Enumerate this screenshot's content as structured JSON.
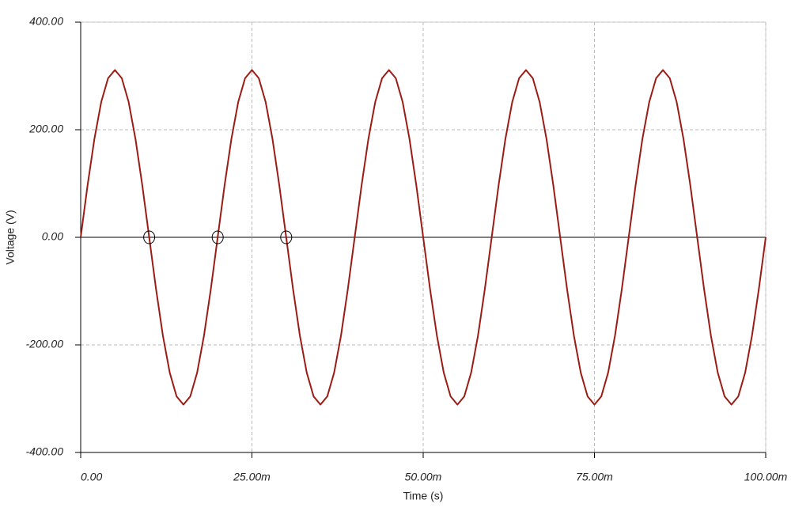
{
  "chart_data": {
    "type": "line",
    "x_label": "Time (s)",
    "y_label": "Voltage (V)",
    "x": [
      0,
      0.001,
      0.002,
      0.003,
      0.004,
      0.005,
      0.006,
      0.007,
      0.008,
      0.009,
      0.01,
      0.011,
      0.012,
      0.013,
      0.014,
      0.015,
      0.016,
      0.017,
      0.018,
      0.019,
      0.02,
      0.021,
      0.022,
      0.023,
      0.024,
      0.025,
      0.026,
      0.027,
      0.028,
      0.029,
      0.03,
      0.031,
      0.032,
      0.033,
      0.034,
      0.035,
      0.036,
      0.037,
      0.038,
      0.039,
      0.04,
      0.041,
      0.042,
      0.043,
      0.044,
      0.045,
      0.046,
      0.047,
      0.048,
      0.049,
      0.05,
      0.051,
      0.052,
      0.053,
      0.054,
      0.055,
      0.056,
      0.057,
      0.058,
      0.059,
      0.06,
      0.061,
      0.062,
      0.063,
      0.064,
      0.065,
      0.066,
      0.067,
      0.068,
      0.069,
      0.07,
      0.071,
      0.072,
      0.073,
      0.074,
      0.075,
      0.076,
      0.077,
      0.078,
      0.079,
      0.08,
      0.081,
      0.082,
      0.083,
      0.084,
      0.085,
      0.086,
      0.087,
      0.088,
      0.089,
      0.09,
      0.091,
      0.092,
      0.093,
      0.094,
      0.095,
      0.096,
      0.097,
      0.098,
      0.099,
      0.1
    ],
    "series": [
      {
        "color": "#9b1c14",
        "values": [
          0,
          96.1,
          182.8,
          251.6,
          295.8,
          311,
          295.8,
          251.6,
          182.8,
          96.1,
          0,
          -96.1,
          -182.8,
          -251.6,
          -295.8,
          -311,
          -295.8,
          -251.6,
          -182.8,
          -96.1,
          0,
          96.1,
          182.8,
          251.6,
          295.8,
          311,
          295.8,
          251.6,
          182.8,
          96.1,
          0,
          -96.1,
          -182.8,
          -251.6,
          -295.8,
          -311,
          -295.8,
          -251.6,
          -182.8,
          -96.1,
          0,
          96.1,
          182.8,
          251.6,
          295.8,
          311,
          295.8,
          251.6,
          182.8,
          96.1,
          0,
          -96.1,
          -182.8,
          -251.6,
          -295.8,
          -311,
          -295.8,
          -251.6,
          -182.8,
          -96.1,
          0,
          96.1,
          182.8,
          251.6,
          295.8,
          311,
          295.8,
          251.6,
          182.8,
          96.1,
          0,
          -96.1,
          -182.8,
          -251.6,
          -295.8,
          -311,
          -295.8,
          -251.6,
          -182.8,
          -96.1,
          0,
          96.1,
          182.8,
          251.6,
          295.8,
          311,
          295.8,
          251.6,
          182.8,
          96.1,
          0,
          -96.1,
          -182.8,
          -251.6,
          -295.8,
          -311,
          -295.8,
          -251.6,
          -182.8,
          -96.1,
          0
        ]
      }
    ],
    "markers": {
      "x": [
        0.01,
        0.02,
        0.03
      ],
      "y": [
        0,
        0,
        0
      ]
    },
    "xlim": [
      0,
      0.1
    ],
    "xticks": [
      {
        "value": 0,
        "label": "0.00"
      },
      {
        "value": 0.025,
        "label": "25.00m"
      },
      {
        "value": 0.05,
        "label": "50.00m"
      },
      {
        "value": 0.075,
        "label": "75.00m"
      },
      {
        "value": 0.1,
        "label": "100.00m"
      }
    ],
    "ylim": [
      -400,
      400
    ],
    "yticks": [
      {
        "value": -400,
        "label": "-400.00"
      },
      {
        "value": -200,
        "label": "-200.00"
      },
      {
        "value": 0,
        "label": "0.00"
      },
      {
        "value": 200,
        "label": "200.00"
      },
      {
        "value": 400,
        "label": "400.00"
      }
    ],
    "grid": true
  }
}
